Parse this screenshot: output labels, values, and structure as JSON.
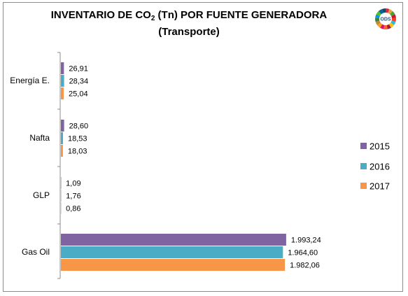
{
  "chart_data": {
    "type": "bar",
    "orientation": "horizontal",
    "title_line1_prefix": "INVENTARIO DE CO",
    "title_sub": "2",
    "title_line1_suffix": " (Tn) POR FUENTE GENERADORA",
    "title_line2": "(Transporte)",
    "categories": [
      "Energía E.",
      "Nafta",
      "GLP",
      "Gas Oil"
    ],
    "series": [
      {
        "name": "2015",
        "color": "#8064a2",
        "values": [
          26.91,
          28.6,
          1.09,
          1993.24
        ],
        "labels": [
          "26,91",
          "28,60",
          "1,09",
          "1.993,24"
        ]
      },
      {
        "name": "2016",
        "color": "#4bacc6",
        "values": [
          28.34,
          18.53,
          1.76,
          1964.6
        ],
        "labels": [
          "28,34",
          "18,53",
          "1,76",
          "1.964,60"
        ]
      },
      {
        "name": "2017",
        "color": "#f79646",
        "values": [
          25.04,
          18.03,
          0.86,
          1982.06
        ],
        "labels": [
          "25,04",
          "18,03",
          "0,86",
          "1.982,06"
        ]
      }
    ],
    "xlim": [
      0,
      2000
    ],
    "legend_position": "right",
    "grid": false
  },
  "logo": {
    "text": "ODS",
    "icon": "sdg-wheel-icon"
  }
}
